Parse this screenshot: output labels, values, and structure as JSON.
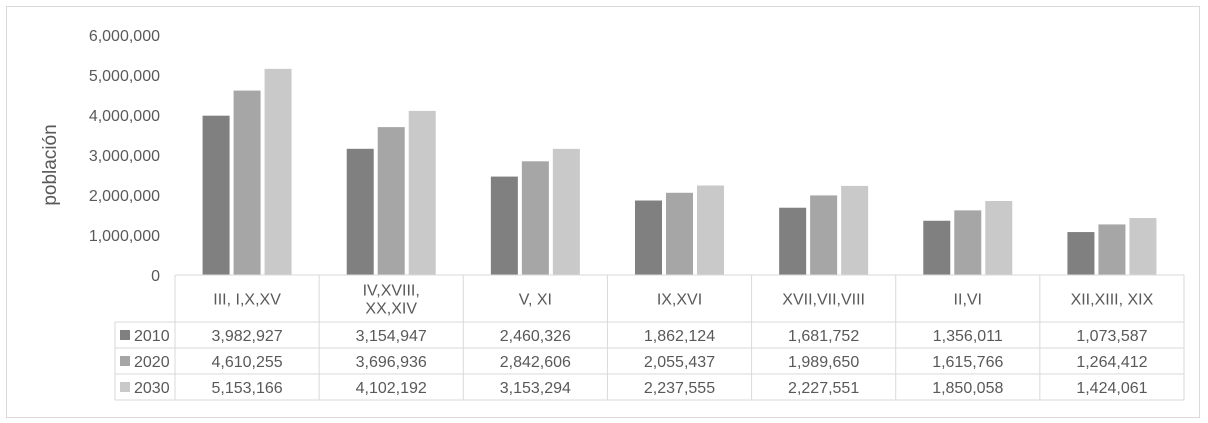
{
  "chart_data": {
    "type": "bar",
    "title": "",
    "xlabel": "",
    "ylabel": "población",
    "ylim": [
      0,
      6000000
    ],
    "yticks": [
      "0",
      "1,000,000",
      "2,000,000",
      "3,000,000",
      "4,000,000",
      "5,000,000",
      "6,000,000"
    ],
    "ytick_values": [
      0,
      1000000,
      2000000,
      3000000,
      4000000,
      5000000,
      6000000
    ],
    "categories": [
      "III, I,X,XV",
      "IV,XVIII,\nXX,XIV",
      "V, XI",
      "IX,XVI",
      "XVII,VII,VIII",
      "II,VI",
      "XII,XIII, XIX"
    ],
    "series": [
      {
        "name": "2010",
        "color": "#808080",
        "values": [
          3982927,
          3154947,
          2460326,
          1862124,
          1681752,
          1356011,
          1073587
        ],
        "labels": [
          "3,982,927",
          "3,154,947",
          "2,460,326",
          "1,862,124",
          "1,681,752",
          "1,356,011",
          "1,073,587"
        ]
      },
      {
        "name": "2020",
        "color": "#a6a6a6",
        "values": [
          4610255,
          3696936,
          2842606,
          2055437,
          1989650,
          1615766,
          1264412
        ],
        "labels": [
          "4,610,255",
          "3,696,936",
          "2,842,606",
          "2,055,437",
          "1,989,650",
          "1,615,766",
          "1,264,412"
        ]
      },
      {
        "name": "2030",
        "color": "#c9c9c9",
        "values": [
          5153166,
          4102192,
          3153294,
          2237555,
          2227551,
          1850058,
          1424061
        ],
        "labels": [
          "5,153,166",
          "4,102,192",
          "3,153,294",
          "2,237,555",
          "2,227,551",
          "1,850,058",
          "1,424,061"
        ]
      }
    ],
    "grid": false,
    "legend": "data-table"
  }
}
